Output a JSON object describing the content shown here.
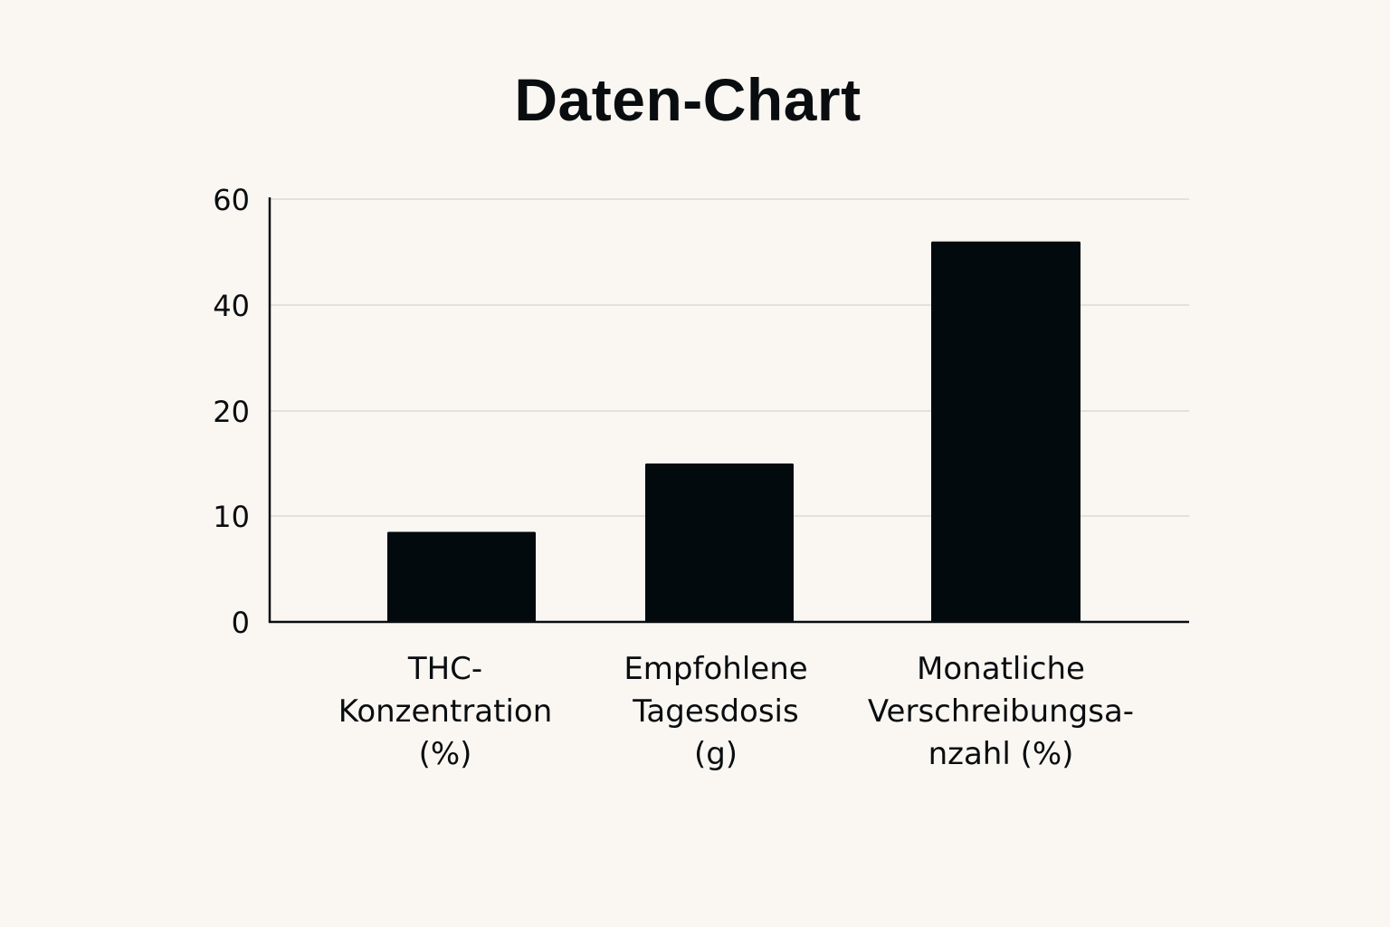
{
  "chart_data": {
    "type": "bar",
    "title": "Daten-Chart",
    "xlabel": "",
    "ylabel": "",
    "y_ticks": [
      "0",
      "10",
      "20",
      "40",
      "60"
    ],
    "categories": [
      [
        "THC-",
        "Konzentration",
        "(%)"
      ],
      [
        "Empfohlene",
        "Tagesdosis",
        "(g)"
      ],
      [
        "Monatliche",
        "Verschreibungsa-",
        "nzahl (%)"
      ]
    ],
    "values": [
      8.5,
      15,
      52
    ],
    "grid": true,
    "legend": "none",
    "colors": {
      "bar": "#030a0d",
      "axis": "#0a0d10",
      "grid": "#dcdad5",
      "background": "#faf7f2"
    }
  }
}
